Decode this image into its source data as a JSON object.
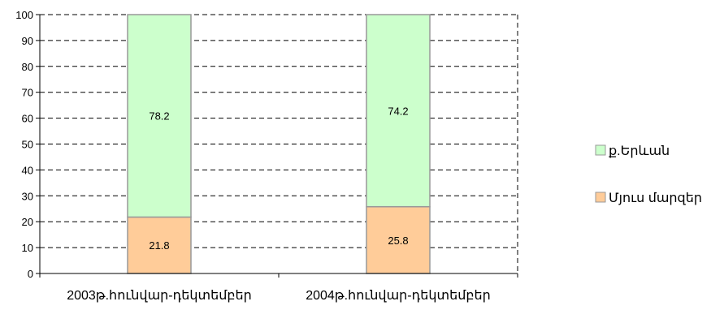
{
  "chart_data": {
    "type": "bar",
    "stacked": true,
    "categories": [
      "2003թ.հունվար-դեկտեմբեր",
      "2004թ.հունվար-դեկտեմբեր"
    ],
    "series": [
      {
        "name": "Մյուս մարզեր",
        "values": [
          21.8,
          25.8
        ],
        "color": "#ffcc99"
      },
      {
        "name": "ք.Երևան",
        "values": [
          78.2,
          74.2
        ],
        "color": "#ccffcc"
      }
    ],
    "value_labels": [
      [
        "21.8",
        "25.8"
      ],
      [
        "78.2",
        "74.2"
      ]
    ],
    "yticks": [
      "0",
      "10",
      "20",
      "30",
      "40",
      "50",
      "60",
      "70",
      "80",
      "90",
      "100"
    ],
    "ylim": [
      0,
      100
    ],
    "grid": "horizontal dashed",
    "legend_position": "right",
    "legend_order": [
      1,
      0
    ],
    "bar_edge_color": "#999999"
  }
}
